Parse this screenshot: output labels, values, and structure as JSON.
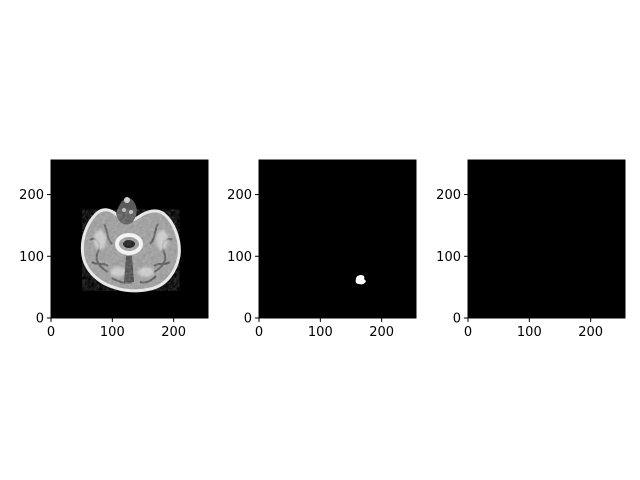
{
  "figure": {
    "background": "#ffffff",
    "axis_color": "#000000",
    "panels": [
      {
        "name": "brain-scan-panel",
        "content": "grayscale-brain-slice",
        "x_ticks": [
          "0",
          "100",
          "200"
        ],
        "y_ticks": [
          "0",
          "100",
          "200"
        ],
        "xlim": [
          0,
          256
        ],
        "ylim": [
          0,
          256
        ]
      },
      {
        "name": "mask-panel",
        "content": "segmentation-mask",
        "blob_center": [
          163,
          62
        ],
        "x_ticks": [
          "0",
          "100",
          "200"
        ],
        "y_ticks": [
          "0",
          "100",
          "200"
        ],
        "xlim": [
          0,
          256
        ],
        "ylim": [
          0,
          256
        ]
      },
      {
        "name": "empty-panel",
        "content": "blank",
        "x_ticks": [
          "0",
          "100",
          "200"
        ],
        "y_ticks": [
          "0",
          "100",
          "200"
        ],
        "xlim": [
          0,
          256
        ],
        "ylim": [
          0,
          256
        ]
      }
    ]
  }
}
